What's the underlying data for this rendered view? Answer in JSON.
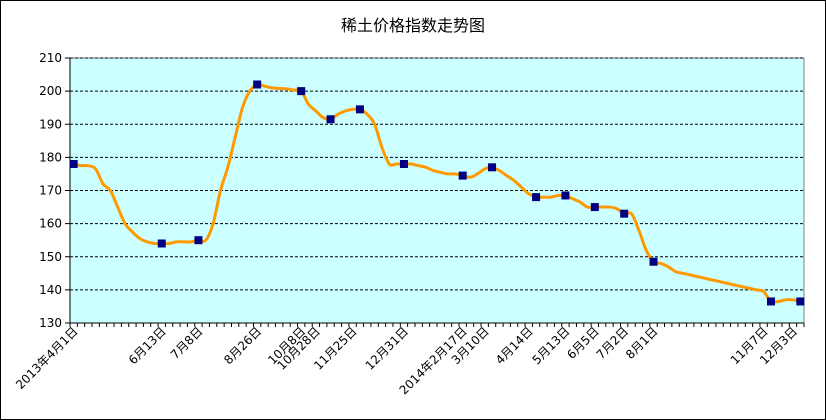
{
  "chart_data": {
    "type": "line",
    "title": "稀土价格指数走势图",
    "xlabel": "",
    "ylabel": "",
    "ylim": [
      130,
      210
    ],
    "yticks": [
      130,
      140,
      150,
      160,
      170,
      180,
      190,
      200,
      210
    ],
    "grid": "horizontal-dashed",
    "legend": "none",
    "colors": {
      "plot_bg": "#ccffff",
      "line": "#ff9900",
      "marker": "#000080",
      "grid": "#000000"
    },
    "x_tick_labels": [
      "2013年4月1日",
      "6月13日",
      "7月8日",
      "8月26日",
      "10月8日",
      "10月28日",
      "11月25日",
      "12月31日",
      "2014年2月17日",
      "3月10日",
      "4月14日",
      "5月13日",
      "6月5日",
      "7月2日",
      "8月1日",
      "11月7日",
      "12月3日"
    ],
    "x_tick_index": [
      0,
      12,
      17,
      25,
      31,
      33,
      38,
      45,
      53,
      56,
      62,
      67,
      71,
      75,
      79,
      94,
      98
    ],
    "series": [
      {
        "values": [
          178,
          177.5,
          177.5,
          176.5,
          172,
          170,
          165,
          160,
          157.5,
          155.5,
          154.5,
          154,
          154,
          154,
          154.5,
          154.5,
          154.5,
          155,
          155,
          160,
          170,
          177,
          186,
          195,
          200,
          202,
          201.5,
          201,
          200.8,
          200.7,
          200.3,
          200,
          196,
          194,
          192,
          191.5,
          193,
          194,
          194.5,
          194.5,
          193,
          190,
          183,
          178,
          178,
          178,
          178,
          177.5,
          177,
          176,
          175.5,
          175,
          175,
          174.5,
          174,
          175,
          176.5,
          177,
          176,
          174.5,
          173,
          171,
          169,
          168,
          168,
          168,
          168.5,
          168.5,
          167.5,
          166.5,
          165,
          165,
          165,
          165,
          164.5,
          163,
          163,
          158,
          152,
          148.5,
          148,
          147,
          145.5,
          145,
          144.5,
          144,
          143.5,
          143,
          142.5,
          142,
          141.5,
          141,
          140.5,
          140,
          139.5,
          136.5,
          136.5,
          137,
          137,
          136.5
        ],
        "marker_indices": [
          0,
          12,
          17,
          25,
          31,
          35,
          39,
          45,
          53,
          57,
          63,
          67,
          71,
          75,
          79,
          95,
          99
        ]
      }
    ]
  }
}
